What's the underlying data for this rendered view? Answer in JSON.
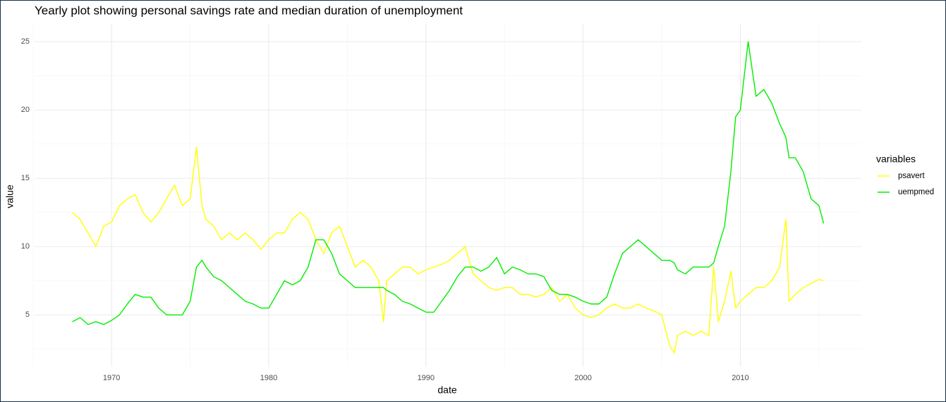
{
  "chart_data": {
    "type": "line",
    "title": "Yearly plot showing personal savings rate and median duration of unemployment",
    "x_label": "date",
    "y_label": "value",
    "legend_title": "variables",
    "legend_position": "right",
    "grid": true,
    "xlim": [
      1965.1,
      2017.7
    ],
    "ylim": [
      1.2,
      26.3
    ],
    "xticks": [
      1970,
      1980,
      1990,
      2000,
      2010
    ],
    "yticks": [
      5,
      10,
      15,
      20,
      25
    ],
    "x_minor_grid": [
      1965,
      1975,
      1985,
      1995,
      2005,
      2015
    ],
    "y_minor_grid": [
      2.5,
      7.5,
      12.5,
      17.5,
      22.5
    ],
    "x": [
      1967.5,
      1968,
      1968.5,
      1969,
      1969.5,
      1970,
      1970.5,
      1971,
      1971.5,
      1972,
      1972.5,
      1973,
      1973.5,
      1974,
      1974.5,
      1975,
      1975.4,
      1975.75,
      1976,
      1976.5,
      1977,
      1977.5,
      1978,
      1978.5,
      1979,
      1979.5,
      1980,
      1980.5,
      1981,
      1981.5,
      1982,
      1982.5,
      1983,
      1983.5,
      1984,
      1984.5,
      1985,
      1985.5,
      1986,
      1986.5,
      1987,
      1987.3,
      1987.5,
      1988,
      1988.5,
      1989,
      1989.5,
      1990,
      1990.5,
      1991,
      1991.5,
      1992,
      1992.5,
      1993,
      1993.5,
      1994,
      1994.5,
      1995,
      1995.5,
      1996,
      1996.5,
      1997,
      1997.5,
      1998,
      1998.5,
      1999,
      1999.5,
      2000,
      2000.5,
      2001,
      2001.5,
      2002,
      2002.5,
      2003,
      2003.5,
      2004,
      2004.5,
      2005,
      2005.5,
      2005.8,
      2006,
      2006.5,
      2007,
      2007.5,
      2008,
      2008.3,
      2008.6,
      2009,
      2009.4,
      2009.7,
      2010,
      2010.5,
      2011,
      2011.5,
      2012,
      2012.5,
      2012.9,
      2013.1,
      2013.5,
      2014,
      2014.5,
      2015,
      2015.3
    ],
    "series": [
      {
        "name": "psavert",
        "color": "#ffff00",
        "values": [
          12.5,
          12.0,
          11.0,
          10.0,
          11.5,
          11.8,
          13.0,
          13.5,
          13.8,
          12.5,
          11.8,
          12.5,
          13.5,
          14.5,
          13.0,
          13.5,
          17.3,
          13.0,
          12.0,
          11.5,
          10.5,
          11.0,
          10.5,
          11.0,
          10.5,
          9.8,
          10.5,
          11.0,
          11.0,
          12.0,
          12.5,
          12.0,
          10.5,
          9.5,
          11.0,
          11.5,
          10.0,
          8.5,
          9.0,
          8.5,
          7.5,
          4.5,
          7.5,
          8.0,
          8.5,
          8.5,
          8.0,
          8.3,
          8.5,
          8.7,
          9.0,
          9.5,
          10.0,
          8.0,
          7.5,
          7.0,
          6.8,
          7.0,
          7.0,
          6.5,
          6.5,
          6.3,
          6.5,
          7.0,
          6.0,
          6.5,
          5.5,
          5.0,
          4.8,
          5.0,
          5.5,
          5.8,
          5.5,
          5.5,
          5.8,
          5.5,
          5.3,
          5.0,
          2.8,
          2.2,
          3.5,
          3.8,
          3.5,
          3.8,
          3.5,
          8.5,
          4.5,
          6.0,
          8.2,
          5.5,
          6.0,
          6.5,
          7.0,
          7.0,
          7.5,
          8.5,
          12.0,
          6.0,
          6.5,
          7.0,
          7.3,
          7.6,
          7.5
        ]
      },
      {
        "name": "uempmed",
        "color": "#00ee00",
        "values": [
          4.5,
          4.8,
          4.3,
          4.5,
          4.3,
          4.6,
          5.0,
          5.8,
          6.5,
          6.3,
          6.3,
          5.5,
          5.0,
          5.0,
          5.0,
          6.0,
          8.5,
          9.0,
          8.5,
          7.8,
          7.5,
          7.0,
          6.5,
          6.0,
          5.8,
          5.5,
          5.5,
          6.5,
          7.5,
          7.2,
          7.5,
          8.5,
          10.5,
          10.5,
          9.5,
          8.0,
          7.5,
          7.0,
          7.0,
          7.0,
          7.0,
          7.0,
          6.8,
          6.5,
          6.0,
          5.8,
          5.5,
          5.2,
          5.2,
          6.0,
          6.8,
          7.8,
          8.5,
          8.5,
          8.2,
          8.5,
          9.2,
          8.0,
          8.5,
          8.3,
          8.0,
          8.0,
          7.8,
          6.8,
          6.5,
          6.5,
          6.3,
          6.0,
          5.8,
          5.8,
          6.3,
          8.0,
          9.5,
          10.0,
          10.5,
          10.0,
          9.5,
          9.0,
          9.0,
          8.8,
          8.3,
          8.0,
          8.5,
          8.5,
          8.5,
          8.8,
          10.0,
          11.5,
          15.5,
          19.5,
          20.0,
          25.0,
          21.0,
          21.5,
          20.5,
          19.0,
          18.0,
          16.5,
          16.5,
          15.5,
          13.5,
          13.0,
          11.7
        ]
      }
    ]
  }
}
